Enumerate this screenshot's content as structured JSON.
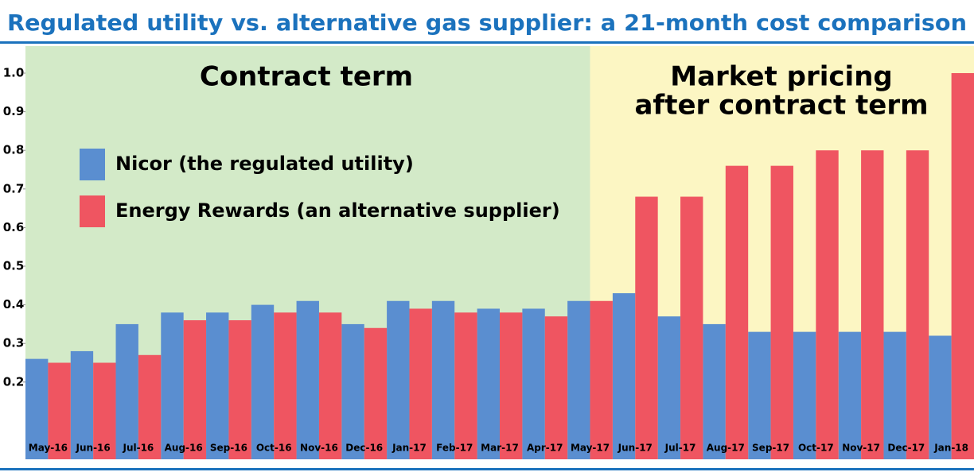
{
  "chart_data": {
    "type": "bar",
    "title": "Regulated utility vs. alternative gas supplier: a 21-month cost comparison",
    "categories": [
      "May-16",
      "Jun-16",
      "Jul-16",
      "Aug-16",
      "Sep-16",
      "Oct-16",
      "Nov-16",
      "Dec-16",
      "Jan-17",
      "Feb-17",
      "Mar-17",
      "Apr-17",
      "May-17",
      "Jun-17",
      "Jul-17",
      "Aug-17",
      "Sep-17",
      "Oct-17",
      "Nov-17",
      "Dec-17",
      "Jan-18"
    ],
    "series": [
      {
        "name": "Nicor (the regulated utility)",
        "color": "#5a8ed0",
        "values": [
          0.26,
          0.28,
          0.35,
          0.38,
          0.38,
          0.4,
          0.41,
          0.35,
          0.41,
          0.41,
          0.39,
          0.39,
          0.41,
          0.43,
          0.37,
          0.35,
          0.33,
          0.33,
          0.33,
          0.33,
          0.32
        ]
      },
      {
        "name": "Energy Rewards (an alternative supplier)",
        "color": "#ef5561",
        "values": [
          0.25,
          0.25,
          0.27,
          0.36,
          0.36,
          0.38,
          0.38,
          0.34,
          0.39,
          0.38,
          0.38,
          0.37,
          0.41,
          0.68,
          0.68,
          0.76,
          0.76,
          0.8,
          0.8,
          0.8,
          1.0
        ]
      }
    ],
    "annotations": [
      "Contract term",
      "Market pricing",
      "after contract term"
    ],
    "ylim": [
      0,
      1.07
    ],
    "yticks": [
      0.2,
      0.3,
      0.4,
      0.5,
      0.6,
      0.7,
      0.8,
      0.9,
      {
        "value": 1,
        "label": "1.0"
      }
    ],
    "legend": "upper left"
  }
}
